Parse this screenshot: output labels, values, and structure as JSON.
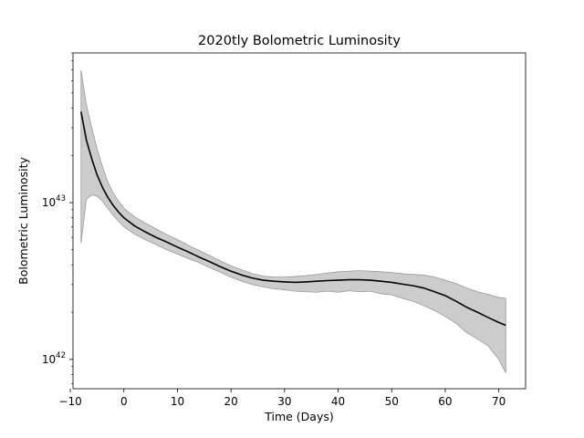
{
  "chart_data": {
    "type": "line",
    "title": "2020tly Bolometric Luminosity",
    "xlabel": "Time (Days)",
    "ylabel": "Bolometric Luminosity",
    "xlim": [
      -9.5,
      75
    ],
    "ylim": [
      6.5e+41,
      9e+43
    ],
    "yscale": "log",
    "grid": false,
    "x_ticks": [
      -10,
      0,
      10,
      20,
      30,
      40,
      50,
      60,
      70
    ],
    "x_tick_labels": [
      "−10",
      "0",
      "10",
      "20",
      "30",
      "40",
      "50",
      "60",
      "70"
    ],
    "y_ticks": [
      {
        "value": 1e+42,
        "base": "10",
        "exponent": "42"
      },
      {
        "value": 1e+43,
        "base": "10",
        "exponent": "43"
      }
    ],
    "colors": {
      "line": "#000000",
      "band": "#cccccc",
      "band_edge": "#999999"
    },
    "series": [
      {
        "x": [
          -8,
          -7,
          -6,
          -5,
          -4,
          -3,
          -2,
          -1,
          0,
          2,
          4,
          6,
          8,
          10,
          12,
          14,
          16,
          18,
          20,
          22,
          24,
          26,
          28,
          30,
          32,
          34,
          36,
          38,
          40,
          42,
          44,
          46,
          48,
          50,
          52,
          54,
          56,
          58,
          60,
          62,
          64,
          66,
          68,
          70,
          71.3
        ],
        "y": [
          3.8e+43,
          2.5e+43,
          1.9e+43,
          1.5e+43,
          1.25e+43,
          1.08e+43,
          9.6e+42,
          8.7e+42,
          8e+42,
          7.1e+42,
          6.5e+42,
          6e+42,
          5.6e+42,
          5.2e+42,
          4.85e+42,
          4.5e+42,
          4.2e+42,
          3.9e+42,
          3.65e+42,
          3.45e+42,
          3.3e+42,
          3.2e+42,
          3.15e+42,
          3.12e+42,
          3.1e+42,
          3.12e+42,
          3.15e+42,
          3.18e+42,
          3.2e+42,
          3.22e+42,
          3.22e+42,
          3.2e+42,
          3.15e+42,
          3.1e+42,
          3.02e+42,
          2.95e+42,
          2.85e+42,
          2.7e+42,
          2.55e+42,
          2.35e+42,
          2.15e+42,
          2e+42,
          1.85e+42,
          1.72e+42,
          1.65e+42
        ],
        "lower": [
          5.5e+42,
          1.05e+43,
          1.12e+43,
          1.1e+43,
          1.02e+43,
          9.2e+42,
          8.3e+42,
          7.6e+42,
          7e+42,
          6.3e+42,
          5.8e+42,
          5.4e+42,
          5e+42,
          4.7e+42,
          4.4e+42,
          4.15e+42,
          3.85e+42,
          3.6e+42,
          3.35e+42,
          3.15e+42,
          3e+42,
          2.9e+42,
          2.82e+42,
          2.78e+42,
          2.72e+42,
          2.7e+42,
          2.68e+42,
          2.72e+42,
          2.68e+42,
          2.74e+42,
          2.7e+42,
          2.72e+42,
          2.62e+42,
          2.58e+42,
          2.45e+42,
          2.35e+42,
          2.2e+42,
          2.05e+42,
          1.88e+42,
          1.7e+42,
          1.48e+42,
          1.35e+42,
          1.22e+42,
          1e+42,
          8.2e+41
        ],
        "upper": [
          7e+43,
          4.2e+43,
          3e+43,
          2.2e+43,
          1.7e+43,
          1.35e+43,
          1.15e+43,
          1.02e+43,
          9.2e+42,
          8.1e+42,
          7.4e+42,
          6.8e+42,
          6.25e+42,
          5.8e+42,
          5.35e+42,
          4.95e+42,
          4.6e+42,
          4.25e+42,
          3.95e+42,
          3.72e+42,
          3.52e+42,
          3.4e+42,
          3.35e+42,
          3.35e+42,
          3.38e+42,
          3.42e+42,
          3.48e+42,
          3.55e+42,
          3.62e+42,
          3.65e+42,
          3.68e+42,
          3.65e+42,
          3.62e+42,
          3.58e+42,
          3.52e+42,
          3.48e+42,
          3.45e+42,
          3.35e+42,
          3.2e+42,
          3.05e+42,
          2.85e+42,
          2.7e+42,
          2.6e+42,
          2.48e+42,
          2.45e+42
        ]
      }
    ]
  }
}
